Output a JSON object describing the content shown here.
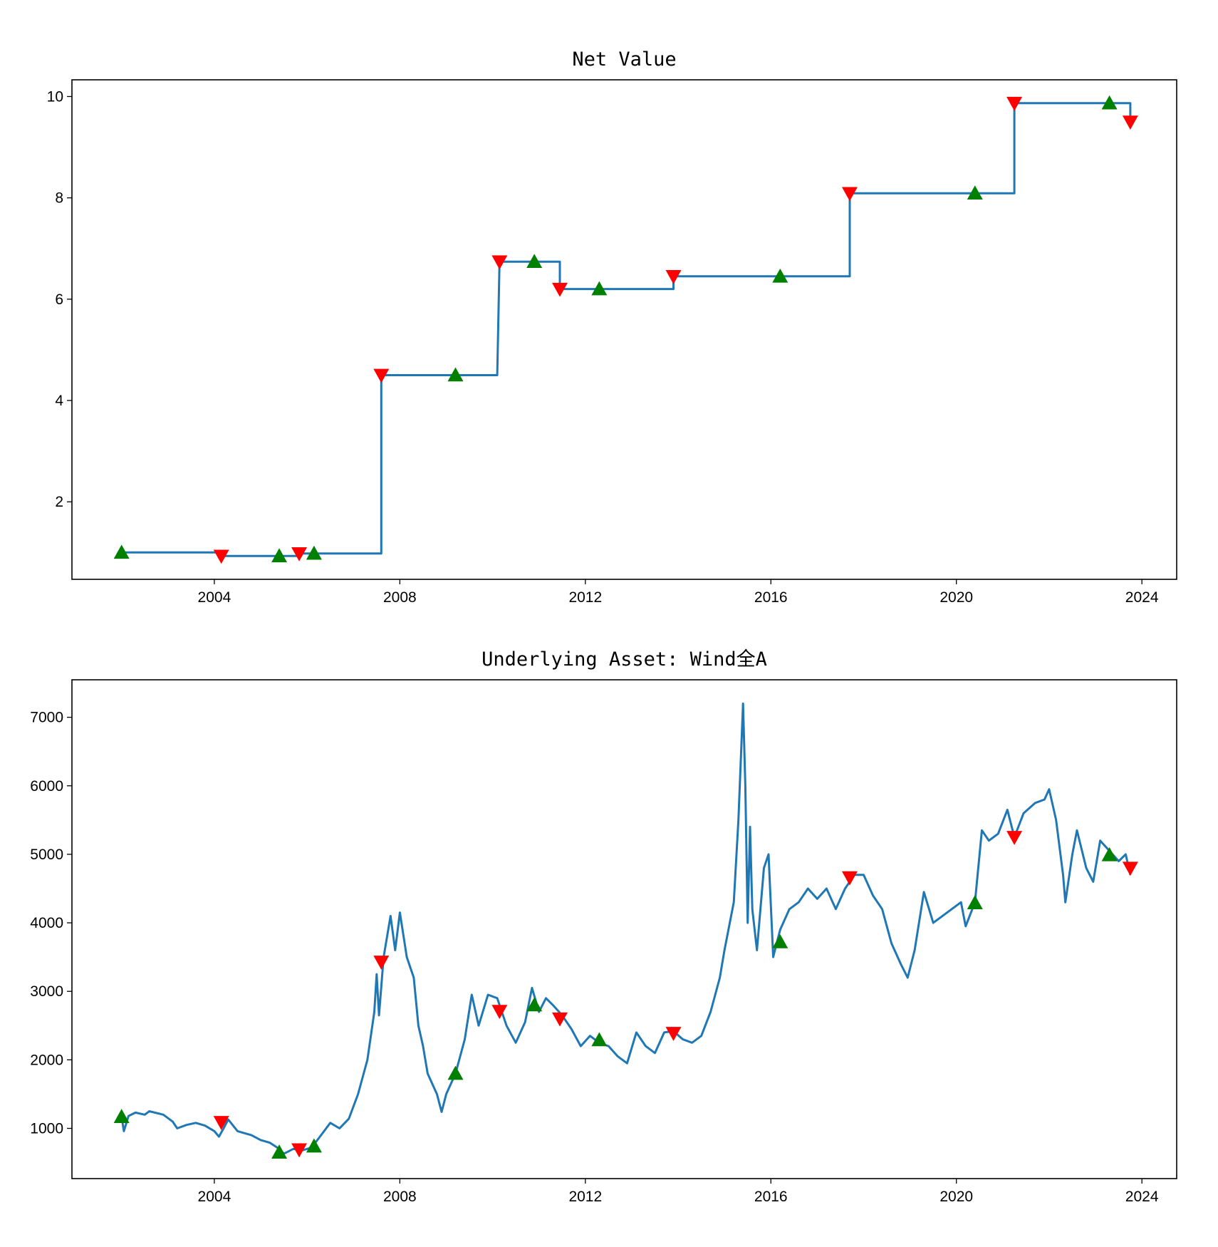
{
  "chart_data": [
    {
      "type": "line",
      "title": "Net Value",
      "xlim": [
        2000.93,
        2024.75
      ],
      "ylim": [
        0.47,
        10.33
      ],
      "xticks": [
        2004,
        2008,
        2012,
        2016,
        2020,
        2024
      ],
      "yticks": [
        2,
        4,
        6,
        8,
        10
      ],
      "grid": false,
      "line_color": "#1f77b4",
      "series": [
        {
          "x": [
            2002.0,
            2004.15,
            2004.15,
            2005.83,
            2005.83,
            2007.6,
            2007.6,
            2010.1,
            2010.15,
            2011.45,
            2011.45,
            2013.9,
            2013.9,
            2017.7,
            2017.7,
            2021.25,
            2021.25,
            2023.75,
            2023.75
          ],
          "y": [
            1.0,
            1.0,
            0.93,
            0.93,
            0.98,
            0.98,
            4.5,
            4.5,
            6.74,
            6.74,
            6.2,
            6.2,
            6.45,
            6.45,
            8.09,
            8.09,
            9.87,
            9.87,
            9.5
          ]
        }
      ],
      "buy_signals": {
        "color": "#008000",
        "marker": "triangle-up",
        "x": [
          2002.0,
          2005.4,
          2006.15,
          2009.2,
          2010.9,
          2012.3,
          2016.2,
          2020.4,
          2023.3
        ],
        "y": [
          1.0,
          0.93,
          0.98,
          4.5,
          6.74,
          6.2,
          6.45,
          8.09,
          9.87
        ]
      },
      "sell_signals": {
        "color": "#ff0000",
        "marker": "triangle-down",
        "x": [
          2004.15,
          2005.83,
          2007.6,
          2010.15,
          2011.45,
          2013.9,
          2017.7,
          2021.25,
          2023.75
        ],
        "y": [
          0.93,
          0.98,
          4.5,
          6.74,
          6.2,
          6.45,
          8.09,
          9.87,
          9.5
        ]
      }
    },
    {
      "type": "line",
      "title": "Underlying Asset: Wind全A",
      "xlim": [
        2000.93,
        2024.75
      ],
      "ylim": [
        267,
        7547
      ],
      "xticks": [
        2004,
        2008,
        2012,
        2016,
        2020,
        2024
      ],
      "yticks": [
        1000,
        2000,
        3000,
        4000,
        5000,
        6000,
        7000
      ],
      "grid": false,
      "line_color": "#1f77b4",
      "series": [
        {
          "points": [
            [
              2002.0,
              1170
            ],
            [
              2002.05,
              960
            ],
            [
              2002.15,
              1180
            ],
            [
              2002.3,
              1230
            ],
            [
              2002.5,
              1200
            ],
            [
              2002.6,
              1250
            ],
            [
              2002.9,
              1200
            ],
            [
              2003.1,
              1100
            ],
            [
              2003.2,
              1000
            ],
            [
              2003.4,
              1050
            ],
            [
              2003.6,
              1080
            ],
            [
              2003.8,
              1040
            ],
            [
              2004.0,
              960
            ],
            [
              2004.1,
              880
            ],
            [
              2004.2,
              1000
            ],
            [
              2004.3,
              1130
            ],
            [
              2004.5,
              960
            ],
            [
              2004.8,
              900
            ],
            [
              2005.0,
              830
            ],
            [
              2005.2,
              790
            ],
            [
              2005.4,
              700
            ],
            [
              2005.5,
              630
            ],
            [
              2005.7,
              700
            ],
            [
              2005.9,
              680
            ],
            [
              2006.1,
              720
            ],
            [
              2006.3,
              900
            ],
            [
              2006.5,
              1080
            ],
            [
              2006.7,
              1000
            ],
            [
              2006.9,
              1140
            ],
            [
              2007.1,
              1500
            ],
            [
              2007.3,
              2000
            ],
            [
              2007.45,
              2700
            ],
            [
              2007.5,
              3250
            ],
            [
              2007.55,
              2650
            ],
            [
              2007.65,
              3500
            ],
            [
              2007.8,
              4100
            ],
            [
              2007.9,
              3600
            ],
            [
              2008.0,
              4150
            ],
            [
              2008.15,
              3500
            ],
            [
              2008.3,
              3200
            ],
            [
              2008.4,
              2500
            ],
            [
              2008.5,
              2200
            ],
            [
              2008.6,
              1800
            ],
            [
              2008.8,
              1500
            ],
            [
              2008.9,
              1240
            ],
            [
              2009.0,
              1500
            ],
            [
              2009.2,
              1800
            ],
            [
              2009.4,
              2300
            ],
            [
              2009.55,
              2950
            ],
            [
              2009.7,
              2500
            ],
            [
              2009.9,
              2950
            ],
            [
              2010.1,
              2900
            ],
            [
              2010.3,
              2500
            ],
            [
              2010.5,
              2250
            ],
            [
              2010.7,
              2550
            ],
            [
              2010.85,
              3050
            ],
            [
              2011.0,
              2700
            ],
            [
              2011.15,
              2900
            ],
            [
              2011.3,
              2800
            ],
            [
              2011.5,
              2650
            ],
            [
              2011.7,
              2450
            ],
            [
              2011.9,
              2200
            ],
            [
              2012.1,
              2350
            ],
            [
              2012.3,
              2250
            ],
            [
              2012.5,
              2200
            ],
            [
              2012.7,
              2050
            ],
            [
              2012.9,
              1950
            ],
            [
              2013.1,
              2400
            ],
            [
              2013.3,
              2200
            ],
            [
              2013.5,
              2100
            ],
            [
              2013.7,
              2400
            ],
            [
              2013.9,
              2420
            ],
            [
              2014.1,
              2300
            ],
            [
              2014.3,
              2250
            ],
            [
              2014.5,
              2350
            ],
            [
              2014.7,
              2700
            ],
            [
              2014.9,
              3200
            ],
            [
              2015.0,
              3600
            ],
            [
              2015.2,
              4300
            ],
            [
              2015.3,
              5500
            ],
            [
              2015.4,
              7200
            ],
            [
              2015.45,
              6000
            ],
            [
              2015.5,
              4000
            ],
            [
              2015.55,
              5400
            ],
            [
              2015.6,
              4200
            ],
            [
              2015.7,
              3600
            ],
            [
              2015.85,
              4800
            ],
            [
              2015.95,
              5000
            ],
            [
              2016.05,
              3500
            ],
            [
              2016.2,
              3900
            ],
            [
              2016.4,
              4200
            ],
            [
              2016.6,
              4300
            ],
            [
              2016.8,
              4500
            ],
            [
              2017.0,
              4350
            ],
            [
              2017.2,
              4500
            ],
            [
              2017.4,
              4200
            ],
            [
              2017.6,
              4500
            ],
            [
              2017.8,
              4700
            ],
            [
              2018.0,
              4700
            ],
            [
              2018.2,
              4400
            ],
            [
              2018.4,
              4200
            ],
            [
              2018.6,
              3700
            ],
            [
              2018.8,
              3400
            ],
            [
              2018.95,
              3200
            ],
            [
              2019.1,
              3600
            ],
            [
              2019.3,
              4450
            ],
            [
              2019.5,
              4000
            ],
            [
              2019.7,
              4100
            ],
            [
              2019.9,
              4200
            ],
            [
              2020.1,
              4300
            ],
            [
              2020.2,
              3950
            ],
            [
              2020.4,
              4300
            ],
            [
              2020.55,
              5350
            ],
            [
              2020.7,
              5200
            ],
            [
              2020.9,
              5300
            ],
            [
              2021.1,
              5650
            ],
            [
              2021.25,
              5250
            ],
            [
              2021.45,
              5600
            ],
            [
              2021.7,
              5750
            ],
            [
              2021.9,
              5800
            ],
            [
              2022.0,
              5950
            ],
            [
              2022.15,
              5500
            ],
            [
              2022.3,
              4700
            ],
            [
              2022.35,
              4300
            ],
            [
              2022.5,
              5000
            ],
            [
              2022.6,
              5350
            ],
            [
              2022.8,
              4800
            ],
            [
              2022.95,
              4600
            ],
            [
              2023.1,
              5200
            ],
            [
              2023.3,
              5050
            ],
            [
              2023.5,
              4900
            ],
            [
              2023.65,
              5000
            ],
            [
              2023.75,
              4700
            ]
          ]
        }
      ],
      "buy_signals": {
        "color": "#008000",
        "marker": "triangle-up",
        "x": [
          2002.0,
          2005.4,
          2006.15,
          2009.2,
          2010.9,
          2012.3,
          2016.2,
          2020.4,
          2023.3
        ],
        "y": [
          1170,
          650,
          740,
          1800,
          2800,
          2290,
          3720,
          4290,
          4990
        ]
      },
      "sell_signals": {
        "color": "#ff0000",
        "marker": "triangle-down",
        "x": [
          2004.15,
          2005.83,
          2007.6,
          2010.15,
          2011.45,
          2013.9,
          2017.7,
          2021.25,
          2023.75
        ],
        "y": [
          1090,
          690,
          3430,
          2710,
          2600,
          2390,
          4660,
          5250,
          4800
        ]
      }
    }
  ]
}
